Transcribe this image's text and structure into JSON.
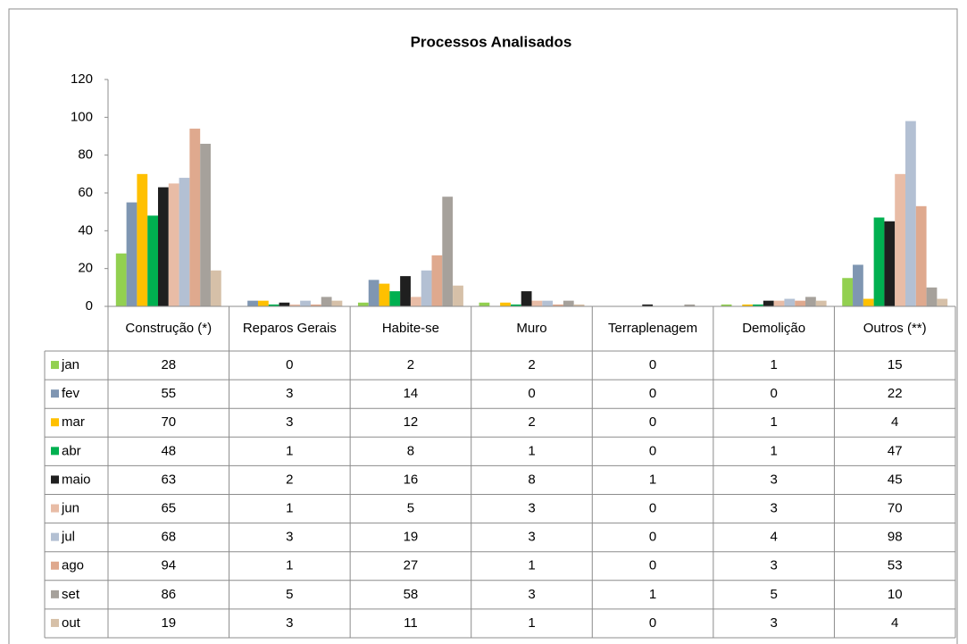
{
  "chart_data": {
    "type": "bar",
    "title": "Processos Analisados",
    "categories": [
      "Construção (*)",
      "Reparos Gerais",
      "Habite-se",
      "Muro",
      "Terraplenagem",
      "Demolição",
      "Outros (**)"
    ],
    "series": [
      {
        "name": "jan",
        "color": "#92d050",
        "values": [
          28,
          0,
          2,
          2,
          0,
          1,
          15
        ]
      },
      {
        "name": "fev",
        "color": "#7f96b2",
        "values": [
          55,
          3,
          14,
          0,
          0,
          0,
          22
        ]
      },
      {
        "name": "mar",
        "color": "#ffc000",
        "values": [
          70,
          3,
          12,
          2,
          0,
          1,
          4
        ]
      },
      {
        "name": "abr",
        "color": "#00b050",
        "values": [
          48,
          1,
          8,
          1,
          0,
          1,
          47
        ]
      },
      {
        "name": "maio",
        "color": "#1f1f1f",
        "values": [
          63,
          2,
          16,
          8,
          1,
          3,
          45
        ]
      },
      {
        "name": "jun",
        "color": "#e8bca6",
        "values": [
          65,
          1,
          5,
          3,
          0,
          3,
          70
        ]
      },
      {
        "name": "jul",
        "color": "#b3c0d3",
        "values": [
          68,
          3,
          19,
          3,
          0,
          4,
          98
        ]
      },
      {
        "name": "ago",
        "color": "#dfa98e",
        "values": [
          94,
          1,
          27,
          1,
          0,
          3,
          53
        ]
      },
      {
        "name": "set",
        "color": "#a6a19b",
        "values": [
          86,
          5,
          58,
          3,
          1,
          5,
          10
        ]
      },
      {
        "name": "out",
        "color": "#d6c0a8",
        "values": [
          19,
          3,
          11,
          1,
          0,
          3,
          4
        ]
      }
    ],
    "ylim": [
      0,
      120
    ],
    "yticks": [
      0,
      20,
      40,
      60,
      80,
      100,
      120
    ],
    "grid": false
  }
}
